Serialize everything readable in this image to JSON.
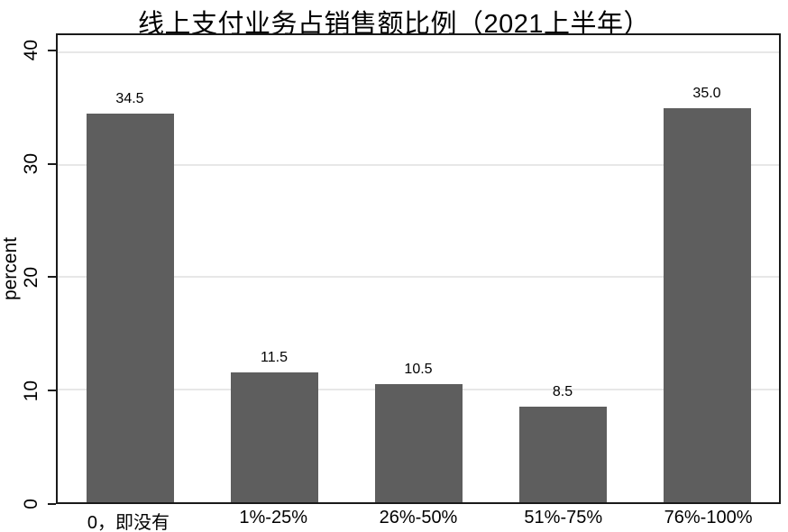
{
  "chart_data": {
    "type": "bar",
    "title": "线上支付业务占销售额比例（2021上半年）",
    "xlabel": "",
    "ylabel": "percent",
    "categories": [
      "0，即没有",
      "1%-25%",
      "26%-50%",
      "51%-75%",
      "76%-100%"
    ],
    "values": [
      34.5,
      11.5,
      10.5,
      8.5,
      35.0
    ],
    "value_labels": [
      "34.5",
      "11.5",
      "10.5",
      "8.5",
      "35.0"
    ],
    "ylim": [
      0,
      41.5
    ],
    "yticks": [
      0,
      10,
      20,
      30,
      40
    ],
    "grid": "horizontal-light",
    "legend": "none",
    "colors": {
      "bar": "#5e5e5e",
      "gridline": "#e7e7e7",
      "axis": "#1a1a1a",
      "text": "#000000",
      "background": "#ffffff"
    }
  }
}
